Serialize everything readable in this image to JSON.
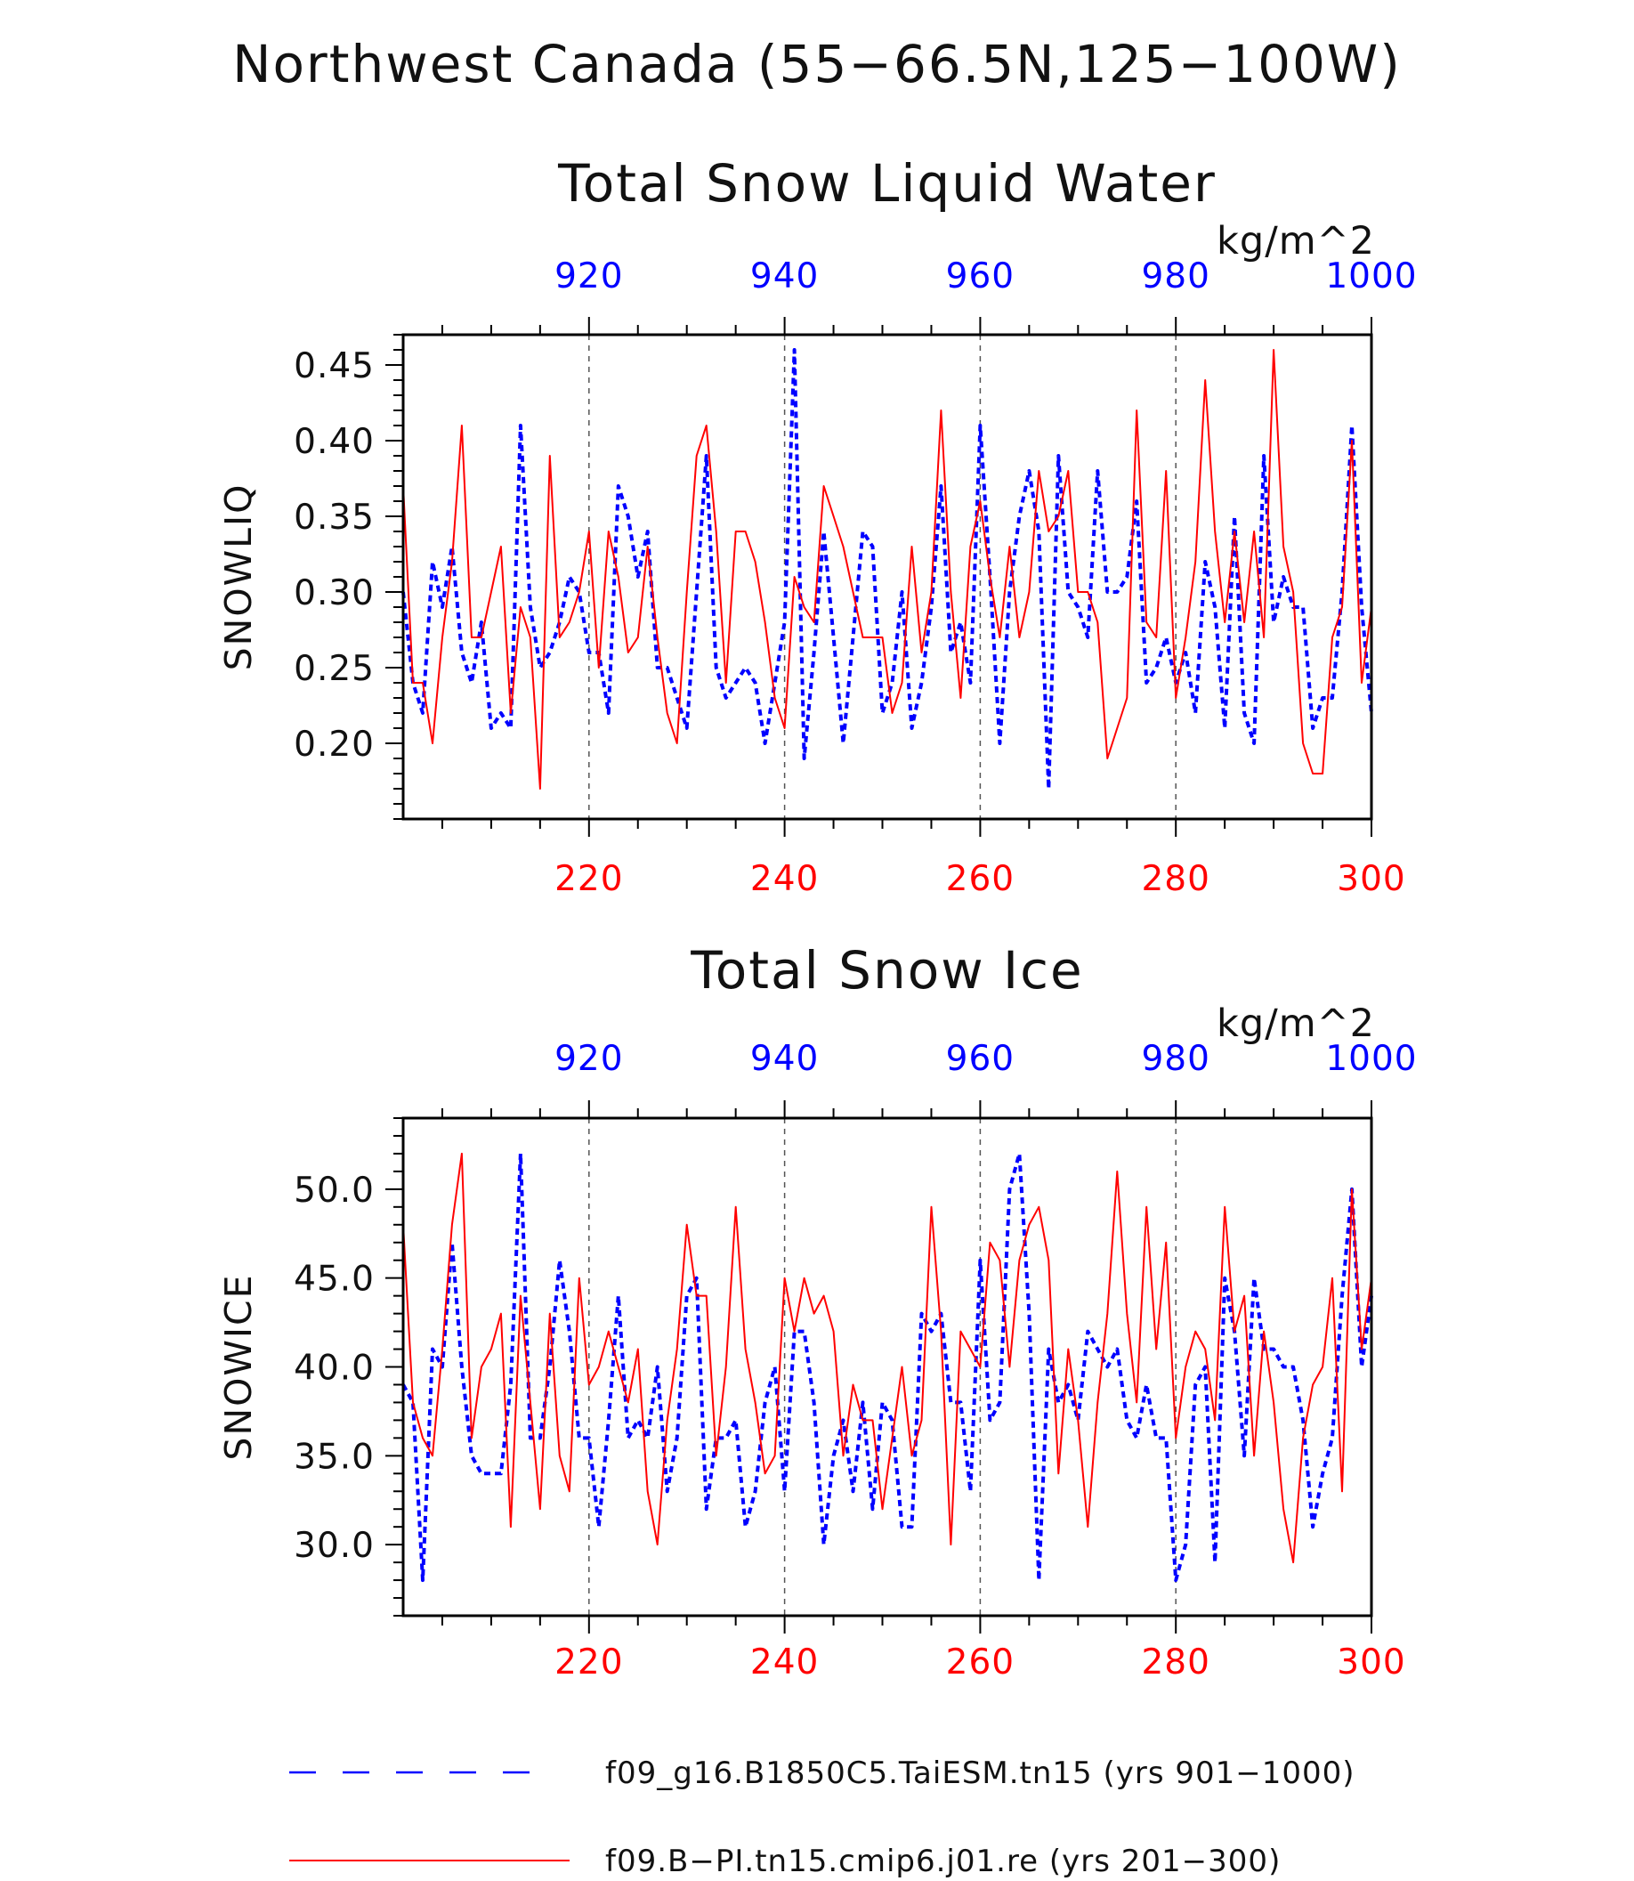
{
  "colors": {
    "top_axis": "#0000ff",
    "bottom_axis": "#ff0000",
    "frame": "#000000",
    "grid": "#555555"
  },
  "title": {
    "line1": "Northwest Canada (55−66.5N,125−100W)"
  },
  "legend": {
    "items": [
      {
        "label": "f09_g16.B1850C5.TaiESM.tn15 (yrs 901−1000)",
        "color": "#0000ff",
        "style": "dashed"
      },
      {
        "label": "f09.B−PI.tn15.cmip6.j01.re (yrs 201−300)",
        "color": "#ff0000",
        "style": "solid"
      }
    ]
  },
  "chart_data": [
    {
      "type": "line",
      "title": "Total Snow Liquid Water",
      "ylabel": "SNOWLIQ",
      "units": "kg/m^2",
      "ylim": [
        0.15,
        0.47
      ],
      "yticks": [
        0.2,
        0.25,
        0.3,
        0.35,
        0.4,
        0.45
      ],
      "ytick_labels": [
        "0.20",
        "0.25",
        "0.30",
        "0.35",
        "0.40",
        "0.45"
      ],
      "x_top": {
        "range": [
          901,
          1000
        ],
        "ticks": [
          920,
          940,
          960,
          980,
          1000
        ],
        "color": "#0000ff"
      },
      "x_bottom": {
        "range": [
          201,
          300
        ],
        "ticks": [
          220,
          240,
          260,
          280,
          300
        ],
        "color": "#ff0000"
      },
      "grid": "vertical dashed at major ticks",
      "series": [
        {
          "name": "f09_g16.B1850C5.TaiESM.tn15 (yrs 901−1000)",
          "axis": "top",
          "style": "dashed",
          "color": "#0000ff",
          "values": [
            0.3,
            0.24,
            0.22,
            0.32,
            0.29,
            0.33,
            0.26,
            0.24,
            0.28,
            0.21,
            0.22,
            0.21,
            0.41,
            0.29,
            0.25,
            0.26,
            0.28,
            0.31,
            0.3,
            0.26,
            0.26,
            0.22,
            0.37,
            0.35,
            0.31,
            0.34,
            0.25,
            0.25,
            0.23,
            0.21,
            0.3,
            0.39,
            0.25,
            0.23,
            0.24,
            0.25,
            0.24,
            0.2,
            0.24,
            0.28,
            0.46,
            0.19,
            0.26,
            0.34,
            0.27,
            0.2,
            0.27,
            0.34,
            0.33,
            0.22,
            0.24,
            0.3,
            0.21,
            0.24,
            0.29,
            0.37,
            0.26,
            0.28,
            0.24,
            0.41,
            0.31,
            0.2,
            0.3,
            0.35,
            0.38,
            0.34,
            0.17,
            0.39,
            0.3,
            0.29,
            0.27,
            0.38,
            0.3,
            0.3,
            0.31,
            0.36,
            0.24,
            0.25,
            0.27,
            0.24,
            0.26,
            0.22,
            0.32,
            0.29,
            0.21,
            0.35,
            0.22,
            0.2,
            0.39,
            0.28,
            0.31,
            0.29,
            0.29,
            0.21,
            0.23,
            0.23,
            0.3,
            0.41,
            0.29,
            0.22
          ]
        },
        {
          "name": "f09.B−PI.tn15.cmip6.j01.re (yrs 201−300)",
          "axis": "bottom",
          "style": "solid",
          "color": "#ff0000",
          "values": [
            0.37,
            0.24,
            0.24,
            0.2,
            0.27,
            0.32,
            0.41,
            0.27,
            0.27,
            0.3,
            0.33,
            0.22,
            0.29,
            0.27,
            0.17,
            0.39,
            0.27,
            0.28,
            0.3,
            0.34,
            0.25,
            0.34,
            0.31,
            0.26,
            0.27,
            0.33,
            0.27,
            0.22,
            0.2,
            0.3,
            0.39,
            0.41,
            0.34,
            0.24,
            0.34,
            0.34,
            0.32,
            0.28,
            0.23,
            0.21,
            0.31,
            0.29,
            0.28,
            0.37,
            0.35,
            0.33,
            0.3,
            0.27,
            0.27,
            0.27,
            0.22,
            0.24,
            0.33,
            0.26,
            0.3,
            0.42,
            0.3,
            0.23,
            0.33,
            0.36,
            0.31,
            0.27,
            0.33,
            0.27,
            0.3,
            0.38,
            0.34,
            0.35,
            0.38,
            0.3,
            0.3,
            0.28,
            0.19,
            0.21,
            0.23,
            0.42,
            0.28,
            0.27,
            0.38,
            0.23,
            0.27,
            0.32,
            0.44,
            0.34,
            0.28,
            0.34,
            0.28,
            0.34,
            0.27,
            0.46,
            0.33,
            0.3,
            0.2,
            0.18,
            0.18,
            0.27,
            0.29,
            0.4,
            0.24,
            0.29
          ]
        }
      ]
    },
    {
      "type": "line",
      "title": "Total Snow Ice",
      "ylabel": "SNOWICE",
      "units": "kg/m^2",
      "ylim": [
        26,
        54
      ],
      "yticks": [
        30,
        35,
        40,
        45,
        50
      ],
      "ytick_labels": [
        "30.0",
        "35.0",
        "40.0",
        "45.0",
        "50.0"
      ],
      "x_top": {
        "range": [
          901,
          1000
        ],
        "ticks": [
          920,
          940,
          960,
          980,
          1000
        ],
        "color": "#0000ff"
      },
      "x_bottom": {
        "range": [
          201,
          300
        ],
        "ticks": [
          220,
          240,
          260,
          280,
          300
        ],
        "color": "#ff0000"
      },
      "grid": "vertical dashed at major ticks",
      "series": [
        {
          "name": "f09_g16.B1850C5.TaiESM.tn15 (yrs 901−1000)",
          "axis": "top",
          "style": "dashed",
          "color": "#0000ff",
          "values": [
            39,
            38,
            28,
            41,
            40,
            47,
            40,
            35,
            34,
            34,
            34,
            39,
            52,
            36,
            36,
            40,
            46,
            42,
            36,
            36,
            31,
            37,
            44,
            36,
            37,
            36,
            40,
            33,
            36,
            44,
            45,
            32,
            36,
            36,
            37,
            31,
            33,
            38,
            40,
            33,
            42,
            42,
            38,
            30,
            35,
            37,
            33,
            38,
            32,
            38,
            37,
            31,
            31,
            43,
            42,
            43,
            38,
            38,
            33,
            46,
            37,
            38,
            50,
            52,
            43,
            28,
            41,
            38,
            39,
            37,
            42,
            41,
            40,
            41,
            37,
            36,
            39,
            36,
            36,
            28,
            30,
            39,
            40,
            29,
            45,
            42,
            35,
            45,
            41,
            41,
            40,
            40,
            37,
            31,
            34,
            36,
            44,
            50,
            40,
            44
          ]
        },
        {
          "name": "f09.B−PI.tn15.cmip6.j01.re (yrs 201−300)",
          "axis": "bottom",
          "style": "solid",
          "color": "#ff0000",
          "values": [
            48,
            38,
            36,
            35,
            41,
            48,
            52,
            36,
            40,
            41,
            43,
            31,
            44,
            38,
            32,
            43,
            35,
            33,
            45,
            39,
            40,
            42,
            40,
            38,
            41,
            33,
            30,
            37,
            41,
            48,
            44,
            44,
            35,
            40,
            49,
            41,
            38,
            34,
            35,
            45,
            42,
            45,
            43,
            44,
            42,
            35,
            39,
            37,
            37,
            32,
            36,
            40,
            35,
            37,
            49,
            42,
            30,
            42,
            41,
            40,
            47,
            46,
            40,
            46,
            48,
            49,
            46,
            34,
            41,
            37,
            31,
            38,
            43,
            51,
            43,
            38,
            49,
            41,
            47,
            36,
            40,
            42,
            41,
            37,
            49,
            42,
            44,
            35,
            42,
            38,
            32,
            29,
            36,
            39,
            40,
            45,
            33,
            50,
            41,
            45
          ]
        }
      ]
    }
  ]
}
